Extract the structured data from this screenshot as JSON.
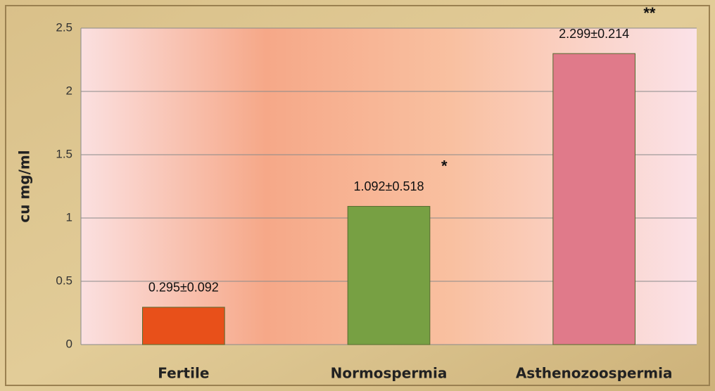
{
  "chart_data": {
    "type": "bar",
    "y_axis_label": "cu   mg/ml",
    "categories": [
      "Fertile",
      "Normospermia",
      "Asthenozoospermia"
    ],
    "values": [
      0.295,
      1.092,
      2.299
    ],
    "value_labels": [
      "0.295±0.092",
      "1.092±0.518",
      "2.299±0.214"
    ],
    "colors": [
      "#e8501a",
      "#77a043",
      "#e07a8a"
    ],
    "annotations": [
      {
        "text": "*",
        "category": "Normospermia"
      },
      {
        "text": "**",
        "category": "Asthenozoospermia"
      }
    ],
    "ylim": [
      0,
      2.5
    ],
    "yticks": [
      0,
      0.5,
      1,
      1.5,
      2,
      2.5
    ],
    "grid": true
  }
}
